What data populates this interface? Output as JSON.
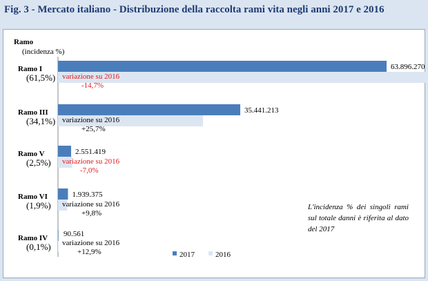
{
  "title": "Fig. 3 - Mercato italiano - Distribuzione della raccolta rami vita negli anni 2017 e 2016",
  "chart_data": {
    "type": "bar",
    "orientation": "horizontal",
    "axis_title": "Ramo",
    "axis_subtitle": "(incidenza %)",
    "categories": [
      {
        "name": "Ramo I",
        "share": "(61,5%)",
        "label_2017": "63.896.270",
        "change": "-14,7%",
        "change_text": "variazione su 2016",
        "negative": true
      },
      {
        "name": "Ramo III",
        "share": "(34,1%)",
        "label_2017": "35.441.213",
        "change": "+25,7%",
        "change_text": "variazione su 2016",
        "negative": false
      },
      {
        "name": "Ramo V",
        "share": "(2,5%)",
        "label_2017": "2.551.419",
        "change": "-7,0%",
        "change_text": "variazione su 2016",
        "negative": true
      },
      {
        "name": "Ramo VI",
        "share": "(1,9%)",
        "label_2017": "1.939.375",
        "change": "+9,8%",
        "change_text": "variazione su 2016",
        "negative": false
      },
      {
        "name": "Ramo IV",
        "share": "(0,1%)",
        "label_2017": "90.561",
        "change": "+12,9%",
        "change_text": "variazione su 2016",
        "negative": false
      }
    ],
    "series": [
      {
        "name": "2017",
        "color": "#4a7ebb",
        "values": [
          63896270,
          35441213,
          2551419,
          1939375,
          90561
        ]
      },
      {
        "name": "2016",
        "color": "#dce6f2",
        "values": [
          74900000,
          28200000,
          2743000,
          1766000,
          80200
        ]
      }
    ],
    "xlim": [
      0,
      80000000
    ],
    "legend": [
      "2017",
      "2016"
    ],
    "legend_position": "bottom",
    "note": "L'incidenza % dei singoli rami sul totale danni è riferita al dato del 2017"
  }
}
